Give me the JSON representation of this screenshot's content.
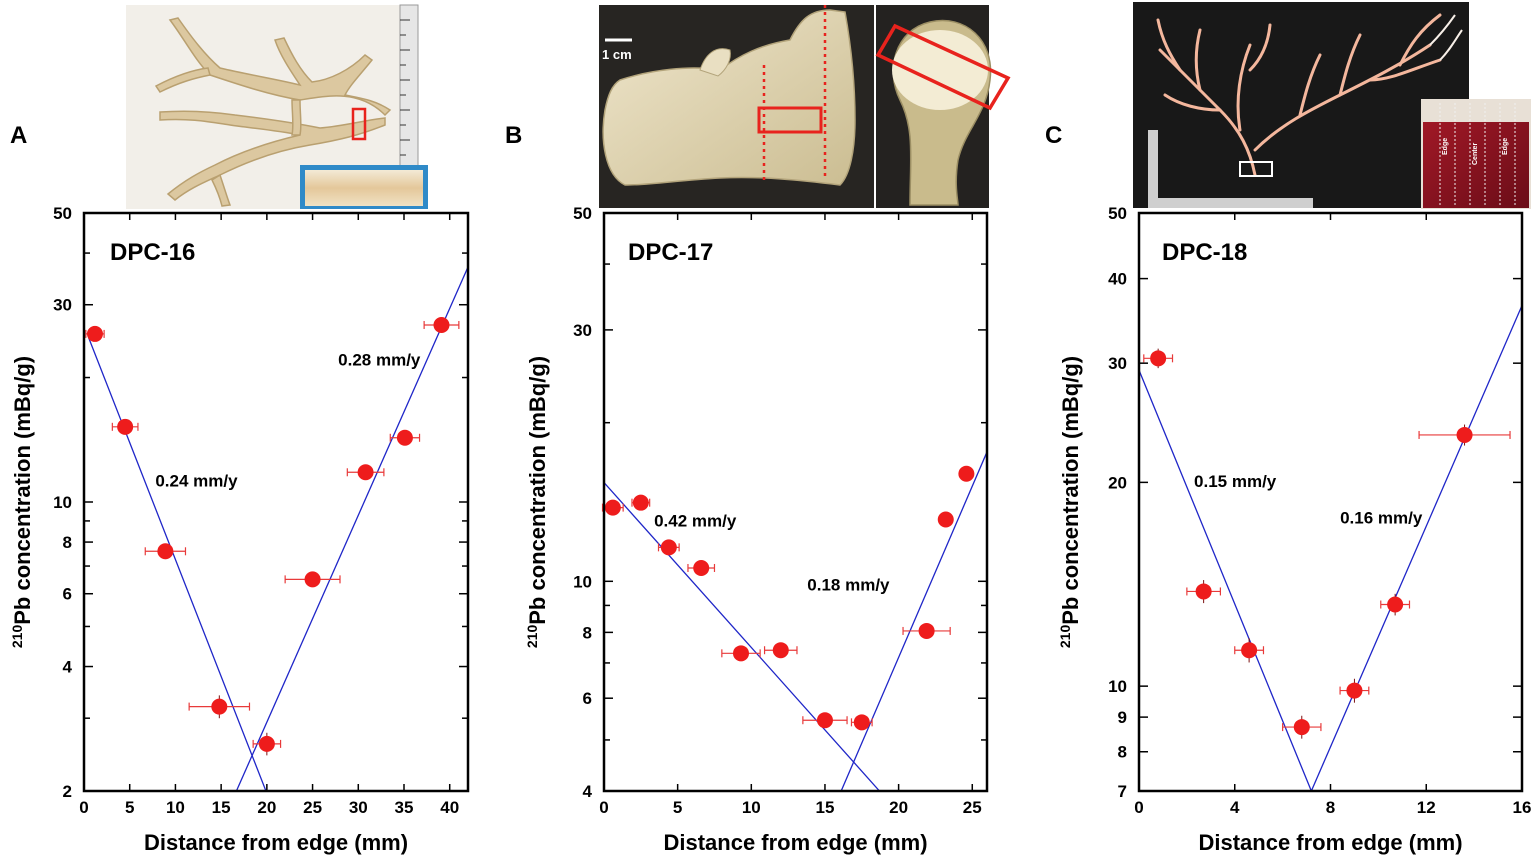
{
  "chart_data": [
    {
      "type": "scatter",
      "panel": "A",
      "sample": "DPC-16",
      "xlabel": "Distance from edge (mm)",
      "ylabel_superscript": "210",
      "ylabel": "Pb concentration (mBq/g)",
      "xlim": [
        0,
        42
      ],
      "ylim": [
        2,
        50
      ],
      "yscale": "log",
      "xticks": [
        0,
        5,
        10,
        15,
        20,
        25,
        30,
        35,
        40
      ],
      "yticks": [
        {
          "v": 2,
          "label": "2"
        },
        {
          "v": 3,
          "label": ""
        },
        {
          "v": 4,
          "label": "4"
        },
        {
          "v": 5,
          "label": ""
        },
        {
          "v": 6,
          "label": "6"
        },
        {
          "v": 7,
          "label": ""
        },
        {
          "v": 8,
          "label": "8"
        },
        {
          "v": 9,
          "label": ""
        },
        {
          "v": 10,
          "label": "10"
        },
        {
          "v": 20,
          "label": ""
        },
        {
          "v": 30,
          "label": "30"
        },
        {
          "v": 40,
          "label": ""
        },
        {
          "v": 50,
          "label": "50"
        }
      ],
      "points": [
        {
          "x": 1.2,
          "y": 25.5,
          "xerr": 1.0,
          "yerr": 0.6
        },
        {
          "x": 4.5,
          "y": 15.2,
          "xerr": 1.4,
          "yerr": 0.4
        },
        {
          "x": 8.9,
          "y": 7.6,
          "xerr": 2.2,
          "yerr": 0.2
        },
        {
          "x": 14.8,
          "y": 3.2,
          "xerr": 3.3,
          "yerr": 0.15
        },
        {
          "x": 20.0,
          "y": 2.6,
          "xerr": 1.5,
          "yerr": 0.12
        },
        {
          "x": 25.0,
          "y": 6.5,
          "xerr": 3.0,
          "yerr": 0.15
        },
        {
          "x": 30.8,
          "y": 11.8,
          "xerr": 2.0,
          "yerr": 0.3
        },
        {
          "x": 35.1,
          "y": 14.3,
          "xerr": 1.6,
          "yerr": 0.35
        },
        {
          "x": 39.1,
          "y": 26.8,
          "xerr": 1.9,
          "yerr": 0.5
        }
      ],
      "fits": [
        {
          "label": "0.24 mm/y",
          "x": [
            0.5,
            20.5
          ],
          "y": [
            25.0,
            1.85
          ]
        },
        {
          "label": "0.28 mm/y",
          "x": [
            15.0,
            42.0
          ],
          "y": [
            1.65,
            37.0
          ]
        }
      ],
      "rate_labels": [
        {
          "text": "0.24 mm/y",
          "x": 7.8,
          "y": 10.9
        },
        {
          "text": "0.28 mm/y",
          "x": 27.8,
          "y": 21.4
        }
      ],
      "photo": {
        "caption": ""
      }
    },
    {
      "type": "scatter",
      "panel": "B",
      "sample": "DPC-17",
      "xlabel": "Distance from edge (mm)",
      "ylabel_superscript": "210",
      "ylabel": "Pb concentration (mBq/g)",
      "xlim": [
        0,
        26
      ],
      "ylim": [
        4,
        50
      ],
      "yscale": "log",
      "xticks": [
        0,
        5,
        10,
        15,
        20,
        25
      ],
      "yticks": [
        {
          "v": 4,
          "label": "4"
        },
        {
          "v": 5,
          "label": ""
        },
        {
          "v": 6,
          "label": "6"
        },
        {
          "v": 7,
          "label": ""
        },
        {
          "v": 8,
          "label": "8"
        },
        {
          "v": 9,
          "label": ""
        },
        {
          "v": 10,
          "label": "10"
        },
        {
          "v": 20,
          "label": ""
        },
        {
          "v": 30,
          "label": "30"
        },
        {
          "v": 40,
          "label": ""
        },
        {
          "v": 50,
          "label": "50"
        }
      ],
      "points": [
        {
          "x": 0.6,
          "y": 13.8,
          "xerr": 0.7,
          "yerr": 0.25
        },
        {
          "x": 2.5,
          "y": 14.1,
          "xerr": 0.6,
          "yerr": 0.25
        },
        {
          "x": 4.4,
          "y": 11.6,
          "xerr": 0.7,
          "yerr": 0.2
        },
        {
          "x": 6.6,
          "y": 10.6,
          "xerr": 0.9,
          "yerr": 0.15
        },
        {
          "x": 9.3,
          "y": 7.3,
          "xerr": 1.3,
          "yerr": 0.12
        },
        {
          "x": 12.0,
          "y": 7.4,
          "xerr": 1.1,
          "yerr": 0.12
        },
        {
          "x": 15.0,
          "y": 5.45,
          "xerr": 1.5,
          "yerr": 0.1
        },
        {
          "x": 17.5,
          "y": 5.4,
          "xerr": 0.7,
          "yerr": 0.1
        },
        {
          "x": 21.9,
          "y": 8.05,
          "xerr": 1.6,
          "yerr": 0.12
        },
        {
          "x": 23.2,
          "y": 13.1,
          "xerr": 0.4,
          "yerr": 0.15
        },
        {
          "x": 24.6,
          "y": 16.0,
          "xerr": 0.4,
          "yerr": 0.15
        }
      ],
      "fits": [
        {
          "label": "0.42 mm/y",
          "x": [
            0.0,
            18.7
          ],
          "y": [
            15.4,
            4.0
          ]
        },
        {
          "label": "0.18 mm/y",
          "x": [
            16.1,
            26.0
          ],
          "y": [
            4.0,
            17.6
          ]
        }
      ],
      "rate_labels": [
        {
          "text": "0.42 mm/y",
          "x": 3.4,
          "y": 12.7
        },
        {
          "text": "0.18 mm/y",
          "x": 13.8,
          "y": 9.6
        }
      ],
      "photo": {
        "caption": "1 cm"
      }
    },
    {
      "type": "scatter",
      "panel": "C",
      "sample": "DPC-18",
      "xlabel": "Distance from edge (mm)",
      "ylabel_superscript": "210",
      "ylabel": "Pb concentration (mBq/g)",
      "xlim": [
        0,
        16
      ],
      "ylim": [
        7,
        50
      ],
      "yscale": "log",
      "xticks": [
        0,
        4,
        8,
        12,
        16
      ],
      "yticks": [
        {
          "v": 7,
          "label": "7"
        },
        {
          "v": 8,
          "label": "8"
        },
        {
          "v": 9,
          "label": "9"
        },
        {
          "v": 10,
          "label": "10"
        },
        {
          "v": 20,
          "label": "20"
        },
        {
          "v": 30,
          "label": "30"
        },
        {
          "v": 40,
          "label": "40"
        },
        {
          "v": 50,
          "label": "50"
        }
      ],
      "points": [
        {
          "x": 0.8,
          "y": 30.5,
          "xerr": 0.6,
          "yerr": 0.7
        },
        {
          "x": 2.7,
          "y": 13.8,
          "xerr": 0.7,
          "yerr": 0.4
        },
        {
          "x": 4.6,
          "y": 11.3,
          "xerr": 0.6,
          "yerr": 0.35
        },
        {
          "x": 6.8,
          "y": 8.7,
          "xerr": 0.8,
          "yerr": 0.25
        },
        {
          "x": 9.0,
          "y": 9.85,
          "xerr": 0.6,
          "yerr": 0.3
        },
        {
          "x": 10.7,
          "y": 13.2,
          "xerr": 0.6,
          "yerr": 0.35
        },
        {
          "x": 13.6,
          "y": 23.5,
          "xerr": 1.9,
          "yerr": 0.6
        }
      ],
      "fits": [
        {
          "label": "0.15 mm/y",
          "x": [
            0.0,
            7.2
          ],
          "y": [
            29.3,
            7.0
          ]
        },
        {
          "label": "0.16 mm/y",
          "x": [
            7.2,
            16.0
          ],
          "y": [
            7.0,
            36.5
          ]
        }
      ],
      "rate_labels": [
        {
          "text": "0.15 mm/y",
          "x": 2.3,
          "y": 19.7
        },
        {
          "text": "0.16 mm/y",
          "x": 8.4,
          "y": 17.4
        }
      ],
      "photo": {
        "caption": ""
      }
    }
  ],
  "colors": {
    "marker": "#ee1c1c",
    "errorbar": "#e83a3a",
    "fit_line": "#1f26c8",
    "axis": "#000000",
    "photo_a_bg": "#f2efe9",
    "photo_b_bg": "#272522",
    "photo_c_bg": "#181818"
  },
  "photo_c_texts": [
    "Edge",
    "Center",
    "Edge"
  ]
}
